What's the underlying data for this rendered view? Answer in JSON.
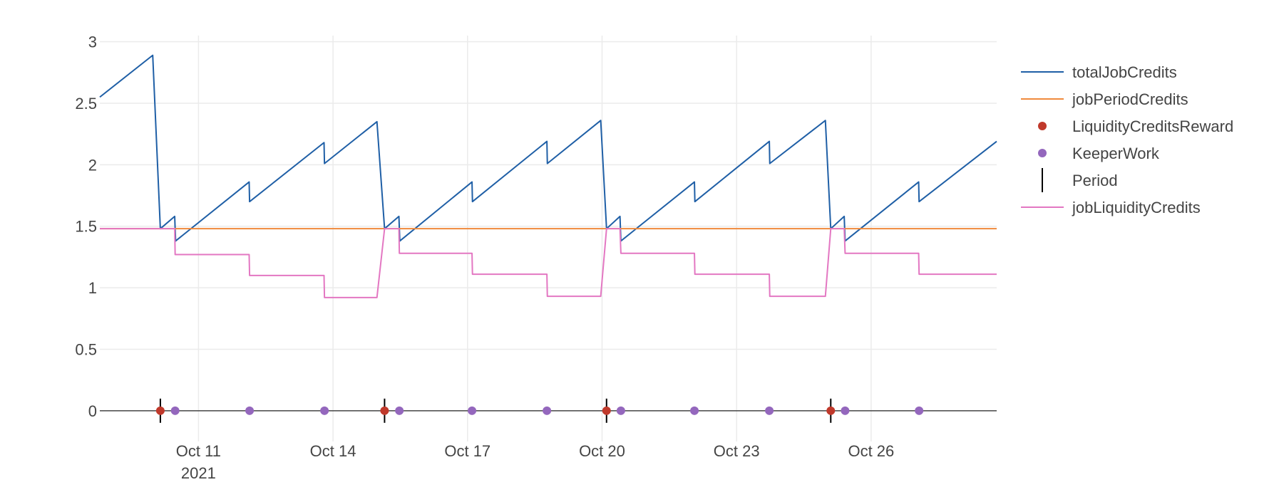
{
  "chart_data": {
    "type": "line",
    "title": "",
    "xlabel": "",
    "ylabel": "",
    "x_axis": {
      "min_day": 8.8,
      "max_day": 28.8,
      "ticks": [
        {
          "day": 11,
          "label": "Oct 11",
          "sublabel": "2021"
        },
        {
          "day": 14,
          "label": "Oct 14",
          "sublabel": ""
        },
        {
          "day": 17,
          "label": "Oct 17",
          "sublabel": ""
        },
        {
          "day": 20,
          "label": "Oct 20",
          "sublabel": ""
        },
        {
          "day": 23,
          "label": "Oct 23",
          "sublabel": ""
        },
        {
          "day": 26,
          "label": "Oct 26",
          "sublabel": ""
        }
      ]
    },
    "y_axis": {
      "ylim": [
        -0.25,
        3.05
      ],
      "ticks": [
        {
          "value": 0,
          "label": "0"
        },
        {
          "value": 0.5,
          "label": "0.5"
        },
        {
          "value": 1,
          "label": "1"
        },
        {
          "value": 1.5,
          "label": "1.5"
        },
        {
          "value": 2,
          "label": "2"
        },
        {
          "value": 2.5,
          "label": "2.5"
        },
        {
          "value": 3,
          "label": "3"
        }
      ]
    },
    "grid": true,
    "legend_position": "right",
    "series": [
      {
        "name": "totalJobCredits",
        "mode": "lines",
        "color": "#1f5fa6",
        "x": [
          8.8,
          9.98,
          10.15,
          10.47,
          10.49,
          12.13,
          12.14,
          13.8,
          13.81,
          14.98,
          15.15,
          15.47,
          15.49,
          17.1,
          17.11,
          18.77,
          18.78,
          19.97,
          20.1,
          20.4,
          20.42,
          22.06,
          22.07,
          23.73,
          23.74,
          24.98,
          25.1,
          25.4,
          25.42,
          27.06,
          27.07,
          28.8
        ],
        "y": [
          2.55,
          2.89,
          1.48,
          1.58,
          1.38,
          1.86,
          1.7,
          2.18,
          2.01,
          2.35,
          1.48,
          1.58,
          1.38,
          1.86,
          1.7,
          2.19,
          2.01,
          2.36,
          1.48,
          1.58,
          1.38,
          1.86,
          1.7,
          2.19,
          2.01,
          2.36,
          1.48,
          1.58,
          1.38,
          1.86,
          1.7,
          2.19
        ]
      },
      {
        "name": "jobPeriodCredits",
        "mode": "lines",
        "color": "#f08a3c",
        "x": [
          8.8,
          28.8
        ],
        "y": [
          1.48,
          1.48
        ]
      },
      {
        "name": "LiquidityCreditsReward",
        "mode": "markers",
        "color": "#c0392b",
        "x": [
          10.15,
          15.15,
          20.1,
          25.1
        ],
        "y": [
          0,
          0,
          0,
          0
        ]
      },
      {
        "name": "KeeperWork",
        "mode": "markers",
        "color": "#9467bd",
        "x": [
          10.48,
          12.14,
          13.81,
          15.48,
          17.1,
          18.77,
          20.42,
          22.06,
          23.73,
          25.42,
          27.07
        ],
        "y": [
          0,
          0,
          0,
          0,
          0,
          0,
          0,
          0,
          0,
          0,
          0
        ]
      },
      {
        "name": "Period",
        "mode": "vlines",
        "color": "#000000",
        "x": [
          10.15,
          15.15,
          20.1,
          25.1
        ],
        "y": [
          0,
          0,
          0,
          0
        ]
      },
      {
        "name": "jobLiquidityCredits",
        "mode": "lines",
        "color": "#e377c2",
        "x": [
          8.8,
          10.47,
          10.48,
          12.13,
          12.14,
          13.8,
          13.81,
          14.98,
          15.15,
          15.47,
          15.48,
          17.1,
          17.11,
          18.77,
          18.78,
          19.97,
          20.1,
          20.4,
          20.42,
          22.06,
          22.07,
          23.73,
          23.74,
          24.98,
          25.1,
          25.4,
          25.42,
          27.06,
          27.07,
          28.8
        ],
        "y": [
          1.48,
          1.48,
          1.27,
          1.27,
          1.1,
          1.1,
          0.92,
          0.92,
          1.48,
          1.48,
          1.28,
          1.28,
          1.11,
          1.11,
          0.93,
          0.93,
          1.48,
          1.48,
          1.28,
          1.28,
          1.11,
          1.11,
          0.93,
          0.93,
          1.48,
          1.48,
          1.28,
          1.28,
          1.11,
          1.11
        ]
      }
    ]
  }
}
